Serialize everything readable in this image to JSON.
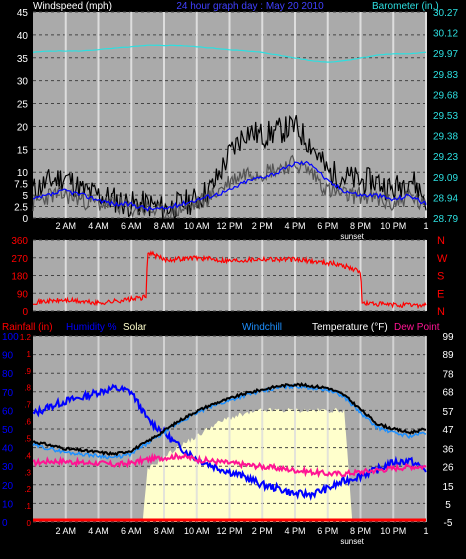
{
  "colors": {
    "background": "#000000",
    "plot_bg": "#aaaaaa",
    "grid": "#444444",
    "vgrid": "#dddddd",
    "day": "#ffffcc",
    "axis_text": "#ffffff",
    "windspeed": "#000000",
    "windgust": "#555555",
    "windavg": "#0000ff",
    "barometer": "#2ddfe0",
    "winddir": "#ff0000",
    "rainfall": "#ff0000",
    "humidity": "#0000ff",
    "solar": "#ffffcc",
    "windchill": "#1e90ff",
    "temperature": "#000000",
    "dewpoint": "#ff1493"
  },
  "chart_data": [
    {
      "type": "line",
      "title": "24 hour graph day : May 20 2010",
      "left_label": "Windspeed (mph)",
      "right_label": "Barometer (in.)",
      "y_left": {
        "min": 0,
        "max": 45,
        "ticks": [
          "0",
          "2.5",
          "5",
          "7.5",
          "10",
          "15",
          "20",
          "25",
          "30",
          "35",
          "40",
          "45"
        ],
        "tick_values": [
          0,
          2.5,
          5,
          7.5,
          10,
          15,
          20,
          25,
          30,
          35,
          40,
          45
        ]
      },
      "y_right": {
        "min": 28.79,
        "max": 30.27,
        "ticks": [
          "28.79",
          "28.94",
          "29.09",
          "29.23",
          "29.38",
          "29.53",
          "29.68",
          "29.83",
          "29.97",
          "30.12",
          "30.27"
        ]
      },
      "x_ticks": [
        "2 AM",
        "4 AM",
        "6 AM",
        "8 AM",
        "10 AM",
        "12 PM",
        "2 PM",
        "4 PM",
        "6 PM",
        "8 PM",
        "10 PM",
        "1"
      ],
      "x_tick_hours": [
        2,
        4,
        6,
        8,
        10,
        12,
        14,
        16,
        18,
        20,
        22,
        24
      ],
      "sunset_label": "sunset",
      "sunset_hour": 19.5,
      "series": {
        "barometer": {
          "x": [
            0,
            1,
            2,
            3,
            4,
            5,
            6,
            7,
            8,
            9,
            10,
            11,
            12,
            13,
            14,
            15,
            16,
            17,
            18,
            19,
            20,
            21,
            22,
            23,
            24
          ],
          "values": [
            29.98,
            29.99,
            29.99,
            29.99,
            30.0,
            30.01,
            30.02,
            30.03,
            30.03,
            30.03,
            30.02,
            30.01,
            30.0,
            29.99,
            29.98,
            29.96,
            29.94,
            29.92,
            29.91,
            29.92,
            29.94,
            29.96,
            29.97,
            29.97,
            29.98
          ]
        },
        "wind_gust": {
          "x": [
            0,
            1,
            2,
            3,
            4,
            5,
            6,
            7,
            8,
            9,
            10,
            11,
            12,
            13,
            14,
            15,
            16,
            17,
            18,
            19,
            20,
            21,
            22,
            23,
            24
          ],
          "values": [
            6,
            8,
            9,
            6,
            5,
            4,
            3,
            3,
            2,
            3,
            4,
            7,
            14,
            19,
            18,
            19,
            20,
            16,
            10,
            9,
            8,
            8,
            6,
            9,
            4
          ]
        },
        "wind_speed": {
          "x": [
            0,
            1,
            2,
            3,
            4,
            5,
            6,
            7,
            8,
            9,
            10,
            11,
            12,
            13,
            14,
            15,
            16,
            17,
            18,
            19,
            20,
            21,
            22,
            23,
            24
          ],
          "values": [
            3,
            5,
            5,
            4,
            3,
            3,
            2,
            2,
            1,
            2,
            3,
            5,
            8,
            10,
            10,
            11,
            12,
            10,
            6,
            5,
            5,
            4,
            3,
            5,
            2
          ]
        },
        "wind_avg": {
          "x": [
            0,
            1,
            2,
            3,
            4,
            5,
            6,
            7,
            8,
            9,
            10,
            11,
            12,
            13,
            14,
            15,
            16,
            17,
            18,
            19,
            20,
            21,
            22,
            23,
            24
          ],
          "values": [
            4,
            5,
            6,
            5,
            4,
            3,
            3,
            2,
            2,
            3,
            4,
            5,
            6,
            8,
            9,
            10,
            12,
            12,
            8,
            6,
            5,
            5,
            4,
            5,
            3
          ]
        }
      }
    },
    {
      "type": "line",
      "y_left": {
        "min": 0,
        "max": 360,
        "ticks": [
          "0",
          "90",
          "180",
          "270",
          "360"
        ],
        "tick_values": [
          0,
          90,
          180,
          270,
          360
        ]
      },
      "y_right_labels": [
        "N",
        "W",
        "S",
        "E",
        "N"
      ],
      "series": {
        "wind_direction": {
          "x": [
            0,
            2,
            4,
            6,
            6.9,
            7,
            8,
            10,
            12,
            14,
            16,
            18,
            19,
            20,
            20.1,
            22,
            24
          ],
          "values": [
            45,
            55,
            40,
            60,
            70,
            300,
            260,
            270,
            255,
            265,
            260,
            245,
            230,
            200,
            40,
            30,
            30
          ]
        }
      }
    },
    {
      "type": "line",
      "labels": {
        "rainfall": "Rainfall (in)",
        "humidity": "Humidity %",
        "solar": "Solar",
        "windchill": "Windchill",
        "temperature": "Temperature (°F)",
        "dewpoint": "Dew Point"
      },
      "y_left_humidity": {
        "min": 0,
        "max": 100,
        "ticks": [
          "0",
          "10",
          "20",
          "30",
          "40",
          "50",
          "60",
          "70",
          "80",
          "90",
          "100"
        ],
        "tick_values": [
          0,
          10,
          20,
          30,
          40,
          50,
          60,
          70,
          80,
          90,
          100
        ]
      },
      "y_left_rain": {
        "min": 0,
        "max": 1.2,
        "ticks": [
          "0",
          ".1",
          ".2",
          ".3",
          ".4",
          ".5",
          ".6",
          ".7",
          ".8",
          ".9",
          "1",
          "1.2"
        ]
      },
      "y_right_temp": {
        "min": -5,
        "max": 99,
        "ticks": [
          "-5",
          "5",
          "15",
          "26",
          "36",
          "47",
          "57",
          "68",
          "78",
          "89",
          "99"
        ],
        "tick_values": [
          -5,
          5,
          15,
          26,
          36,
          47,
          57,
          68,
          78,
          89,
          99
        ]
      },
      "series": {
        "solar": {
          "x": [
            0,
            6,
            6.7,
            7,
            8,
            9,
            10,
            11,
            12,
            13,
            14,
            15,
            16,
            17,
            18,
            19,
            19.5,
            24
          ],
          "values": [
            0,
            0,
            0,
            28,
            35,
            41,
            46,
            52,
            56,
            58,
            60,
            60,
            60,
            60,
            60,
            60,
            0,
            0
          ]
        },
        "humidity": {
          "x": [
            0,
            1,
            2,
            3,
            4,
            5,
            6,
            7,
            8,
            9,
            10,
            11,
            12,
            13,
            14,
            15,
            16,
            17,
            18,
            19,
            20,
            21,
            22,
            23,
            24
          ],
          "values": [
            58,
            62,
            65,
            67,
            70,
            72,
            70,
            55,
            48,
            40,
            34,
            30,
            27,
            24,
            20,
            18,
            15,
            15,
            18,
            22,
            25,
            28,
            32,
            33,
            28
          ]
        },
        "temperature": {
          "x": [
            0,
            1,
            2,
            3,
            4,
            5,
            6,
            7,
            8,
            9,
            10,
            11,
            12,
            13,
            14,
            15,
            16,
            17,
            18,
            19,
            20,
            21,
            22,
            23,
            24
          ],
          "values": [
            40,
            38,
            36,
            35,
            34,
            33,
            35,
            40,
            46,
            52,
            57,
            61,
            64,
            67,
            69,
            71,
            72,
            71,
            70,
            66,
            58,
            50,
            47,
            45,
            47
          ]
        },
        "windchill": {
          "x": [
            0,
            1,
            2,
            3,
            4,
            5,
            6,
            7,
            8,
            9,
            10,
            11,
            12,
            13,
            14,
            15,
            16,
            17,
            18,
            19,
            20,
            21,
            22,
            23,
            24
          ],
          "values": [
            38,
            36,
            34,
            33,
            32,
            31,
            33,
            39,
            45,
            51,
            56,
            60,
            63,
            66,
            68,
            70,
            71,
            70,
            69,
            65,
            56,
            48,
            45,
            43,
            45
          ]
        },
        "dewpoint": {
          "x": [
            0,
            1,
            2,
            3,
            4,
            5,
            6,
            7,
            8,
            9,
            10,
            11,
            12,
            13,
            14,
            15,
            16,
            17,
            18,
            19,
            20,
            21,
            22,
            23,
            24
          ],
          "values": [
            28,
            29,
            29,
            28,
            28,
            27,
            28,
            30,
            31,
            32,
            30,
            29,
            28,
            27,
            26,
            25,
            24,
            23,
            22,
            22,
            23,
            24,
            25,
            26,
            26
          ]
        },
        "rainfall": {
          "x": [
            0,
            24
          ],
          "values": [
            0,
            0
          ]
        }
      }
    }
  ]
}
